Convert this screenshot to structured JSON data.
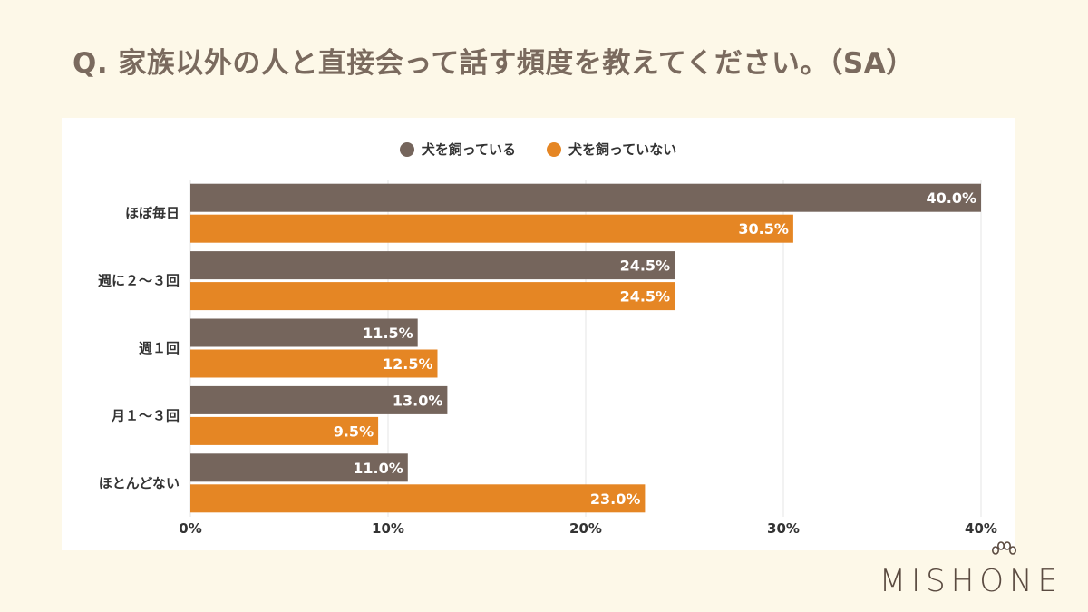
{
  "title": "Q.  家族以外の人と直接会って話す頻度を教えてください。（SA）",
  "brand": "MISHONE",
  "colors": {
    "series1": "#75655c",
    "series2": "#e58624",
    "grid": "#e6e6e6",
    "label": "#ffffff",
    "axis_text": "#333333"
  },
  "chart_data": {
    "type": "bar",
    "orientation": "horizontal",
    "categories": [
      "ほぼ毎日",
      "週に２～３回",
      "週１回",
      "月１～３回",
      "ほとんどない"
    ],
    "series": [
      {
        "name": "犬を飼っている",
        "values": [
          40.0,
          24.5,
          11.5,
          13.0,
          11.0
        ]
      },
      {
        "name": "犬を飼っていない",
        "values": [
          30.5,
          24.5,
          12.5,
          9.5,
          23.0
        ]
      }
    ],
    "value_labels": [
      [
        "40.0%",
        "24.5%",
        "11.5%",
        "13.0%",
        "11.0%"
      ],
      [
        "30.5%",
        "24.5%",
        "12.5%",
        "9.5%",
        "23.0%"
      ]
    ],
    "xlim": [
      0,
      40
    ],
    "xticks": [
      "0%",
      "10%",
      "20%",
      "30%",
      "40%"
    ],
    "grid": true,
    "legend_position": "top-center"
  }
}
